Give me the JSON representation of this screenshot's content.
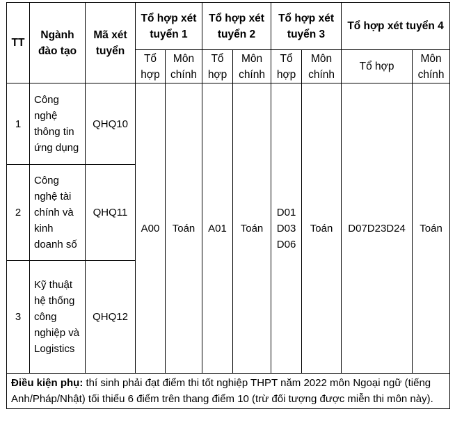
{
  "header": {
    "tt": "TT",
    "nganh": "Ngành đào tạo",
    "ma": "Mã xét tuyển",
    "groups": [
      "Tổ hợp xét tuyển 1",
      "Tổ hợp xét tuyển 2",
      "Tổ hợp xét tuyển 3",
      "Tổ hợp xét tuyển  4"
    ],
    "sub_to_hop": "Tổ hợp",
    "sub_mon_chinh": "Môn chính"
  },
  "rows": [
    {
      "tt": "1",
      "nganh": "Công nghệ thông tin ứng dụng",
      "ma": "QHQ10"
    },
    {
      "tt": "2",
      "nganh": "Công nghệ tài chính và kinh doanh số",
      "ma": "QHQ11"
    },
    {
      "tt": "3",
      "nganh": "Kỹ thuật hệ thống công nghiệp và Logistics",
      "ma": "QHQ12"
    }
  ],
  "combos": {
    "g1": {
      "to_hop": "A00",
      "mon": "Toán"
    },
    "g2": {
      "to_hop": "A01",
      "mon": "Toán"
    },
    "g3": {
      "to_hop": [
        "D01",
        "D03",
        "D06"
      ],
      "mon": "Toán"
    },
    "g4": {
      "to_hop": "D07D23D24",
      "mon": "Toán"
    }
  },
  "footnote": {
    "label": "Điều kiện phụ:",
    "text": " thí sinh phải đạt điểm thi tốt nghiệp THPT năm 2022 môn Ngoại ngữ (tiếng Anh/Pháp/Nhật) tối thiểu 6 điểm trên thang điểm 10 (trừ đối tượng được miễn thi môn này)."
  }
}
